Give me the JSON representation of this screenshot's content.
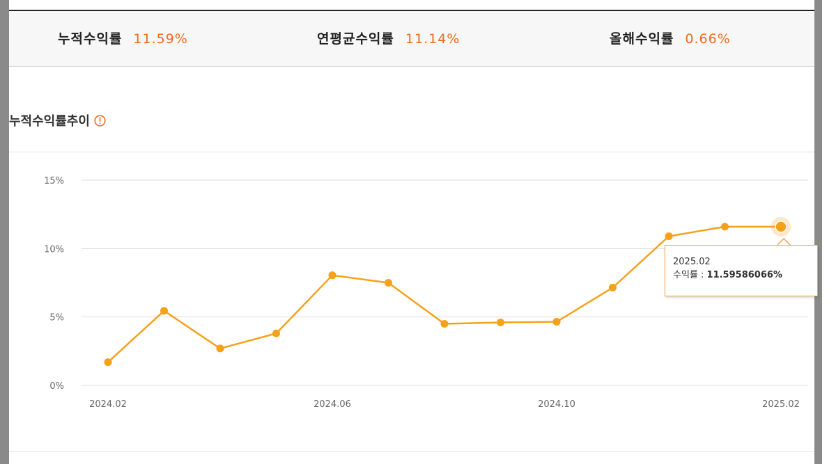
{
  "summary": {
    "stats": [
      {
        "label": "누적수익률",
        "value": "11.59%"
      },
      {
        "label": "연평균수익률",
        "value": "11.14%"
      },
      {
        "label": "올해수익률",
        "value": "0.66%"
      }
    ]
  },
  "section_title": "누적수익률추이",
  "colors": {
    "accent": "#f06b1a",
    "series": "#f7a11a",
    "tooltip_border": "#f2a23a",
    "grid": "#dddddd",
    "axis_text": "#666666"
  },
  "icons": {
    "info": "exclamation-circle-icon"
  },
  "tooltip": {
    "date": "2025.02",
    "label": "수익률 : ",
    "value": "11.59586066%"
  },
  "chart_data": {
    "type": "line",
    "x": [
      "2024.02",
      "2024.03",
      "2024.04",
      "2024.05",
      "2024.06",
      "2024.07",
      "2024.08",
      "2024.09",
      "2024.10",
      "2024.11",
      "2024.12",
      "2025.01",
      "2025.02"
    ],
    "series": [
      {
        "values": [
          1.7,
          5.45,
          2.7,
          3.8,
          8.05,
          7.5,
          4.5,
          4.6,
          4.65,
          7.15,
          10.9,
          11.6,
          11.6
        ]
      }
    ],
    "x_tick_labels": [
      "2024.02",
      "2024.06",
      "2024.10",
      "2025.02"
    ],
    "y_tick_labels": [
      "0%",
      "5%",
      "10%",
      "15%"
    ],
    "ylim": [
      0,
      15
    ],
    "grid": true,
    "highlighted_point": "2025.02"
  }
}
